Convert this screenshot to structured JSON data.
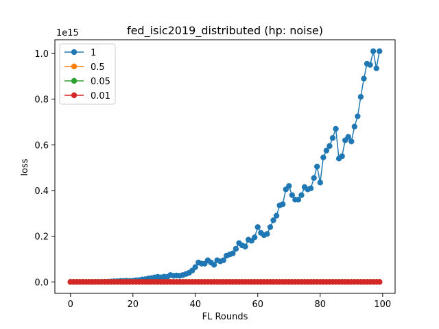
{
  "chart_data": {
    "type": "line",
    "title": "fed_isic2019_distributed (hp: noise)",
    "xlabel": "FL Rounds",
    "ylabel": "loss",
    "y_offset_label": "1e15",
    "y_multiplier": 1000000000000000.0,
    "xlim": [
      -5,
      104
    ],
    "ylim": [
      -0.05,
      1.06
    ],
    "x_ticks": [
      0,
      20,
      40,
      60,
      80,
      100
    ],
    "x_tick_labels": [
      "0",
      "20",
      "40",
      "60",
      "80",
      "100"
    ],
    "y_ticks": [
      0.0,
      0.2,
      0.4,
      0.6,
      0.8,
      1.0
    ],
    "y_tick_labels": [
      "0.0",
      "0.2",
      "0.4",
      "0.6",
      "0.8",
      "1.0"
    ],
    "grid": false,
    "legend_position": "upper-left",
    "x": [
      0,
      1,
      2,
      3,
      4,
      5,
      6,
      7,
      8,
      9,
      10,
      11,
      12,
      13,
      14,
      15,
      16,
      17,
      18,
      19,
      20,
      21,
      22,
      23,
      24,
      25,
      26,
      27,
      28,
      29,
      30,
      31,
      32,
      33,
      34,
      35,
      36,
      37,
      38,
      39,
      40,
      41,
      42,
      43,
      44,
      45,
      46,
      47,
      48,
      49,
      50,
      51,
      52,
      53,
      54,
      55,
      56,
      57,
      58,
      59,
      60,
      61,
      62,
      63,
      64,
      65,
      66,
      67,
      68,
      69,
      70,
      71,
      72,
      73,
      74,
      75,
      76,
      77,
      78,
      79,
      80,
      81,
      82,
      83,
      84,
      85,
      86,
      87,
      88,
      89,
      90,
      91,
      92,
      93,
      94,
      95,
      96,
      97,
      98,
      99
    ],
    "series": [
      {
        "name": "1",
        "color": "#1f77b4",
        "values": [
          0.0,
          0.0,
          0.0,
          0.0,
          0.0,
          0.0,
          0.0,
          0.0,
          0.0,
          0.0,
          0.0,
          0.001,
          0.001,
          0.002,
          0.003,
          0.003,
          0.004,
          0.004,
          0.005,
          0.004,
          0.005,
          0.007,
          0.008,
          0.011,
          0.012,
          0.015,
          0.017,
          0.02,
          0.022,
          0.02,
          0.023,
          0.022,
          0.03,
          0.027,
          0.028,
          0.027,
          0.03,
          0.035,
          0.04,
          0.05,
          0.065,
          0.085,
          0.08,
          0.08,
          0.095,
          0.085,
          0.075,
          0.095,
          0.09,
          0.095,
          0.115,
          0.12,
          0.125,
          0.145,
          0.17,
          0.16,
          0.155,
          0.185,
          0.18,
          0.195,
          0.24,
          0.215,
          0.205,
          0.21,
          0.24,
          0.27,
          0.29,
          0.335,
          0.34,
          0.405,
          0.42,
          0.38,
          0.36,
          0.36,
          0.38,
          0.415,
          0.405,
          0.41,
          0.455,
          0.505,
          0.435,
          0.545,
          0.575,
          0.595,
          0.63,
          0.67,
          0.54,
          0.55,
          0.62,
          0.635,
          0.615,
          0.68,
          0.725,
          0.81,
          0.89,
          0.955,
          0.95,
          1.01,
          0.935,
          1.01
        ]
      },
      {
        "name": "0.5",
        "color": "#ff7f0e",
        "values": "zeros"
      },
      {
        "name": "0.05",
        "color": "#2ca02c",
        "values": "zeros"
      },
      {
        "name": "0.01",
        "color": "#d62728",
        "values": "zeros"
      }
    ]
  }
}
